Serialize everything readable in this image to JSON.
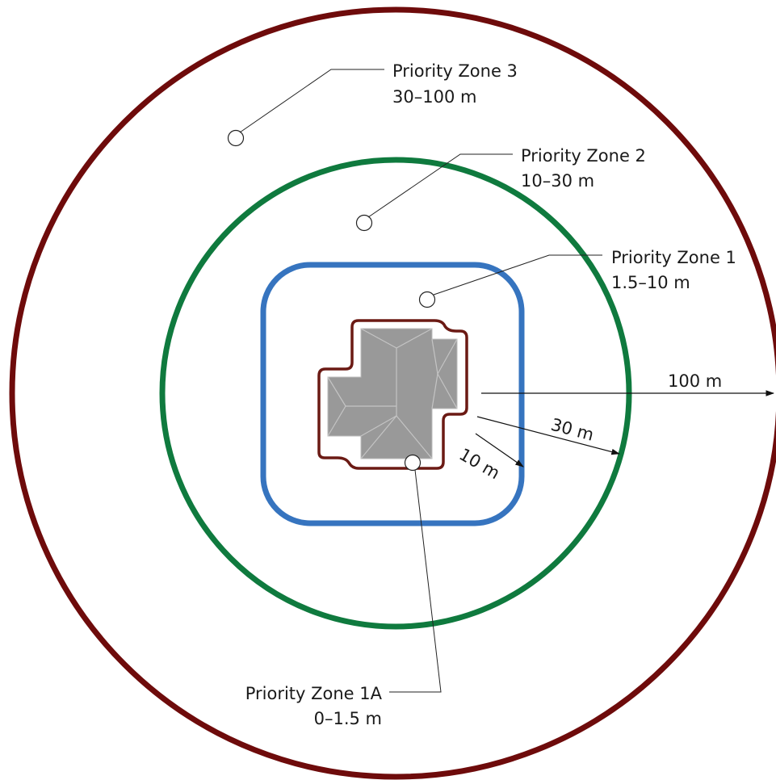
{
  "zones": {
    "zone3": {
      "name": "Priority Zone 3",
      "range": "30–100 m",
      "color": "#6e0b0b"
    },
    "zone2": {
      "name": "Priority Zone 2",
      "range": "10–30 m",
      "color": "#0f7a3e"
    },
    "zone1": {
      "name": "Priority Zone 1",
      "range": "1.5–10 m",
      "color": "#3674bf"
    },
    "zone1a": {
      "name": "Priority Zone 1A",
      "range": "0–1.5 m",
      "color": "#6b1a14"
    }
  },
  "dimensions": {
    "d100": "100 m",
    "d30": "30 m",
    "d10": "10 m"
  },
  "house": {
    "roof_color": "#999999"
  }
}
